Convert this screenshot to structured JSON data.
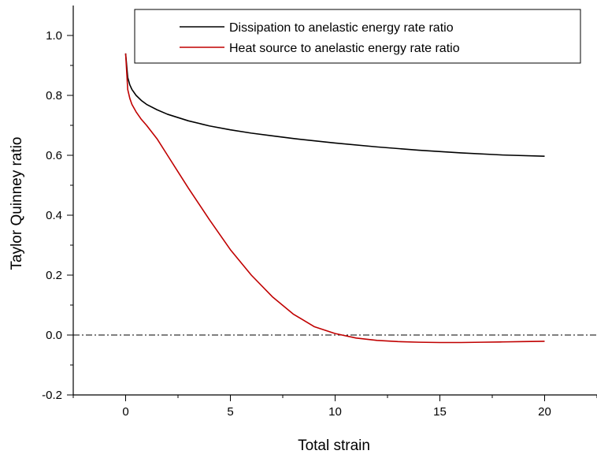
{
  "chart_data": {
    "type": "line",
    "xlabel": "Total strain",
    "ylabel": "Taylor Quinney ratio",
    "xlim": [
      -2.5,
      22.5
    ],
    "ylim": [
      -0.2,
      1.1
    ],
    "x_ticks": [
      0,
      5,
      10,
      15,
      20
    ],
    "x_tick_labels": [
      "0",
      "5",
      "10",
      "15",
      "20"
    ],
    "y_ticks": [
      -0.2,
      0.0,
      0.2,
      0.4,
      0.6,
      0.8,
      1.0
    ],
    "y_tick_labels": [
      "-0.2",
      "0.0",
      "0.2",
      "0.4",
      "0.6",
      "0.8",
      "1.0"
    ],
    "grid": false,
    "legend_position": "top-right",
    "reference_line": {
      "y": 0.0,
      "style": "dash-dot",
      "color": "#000000"
    },
    "series": [
      {
        "name": "Dissipation to anelastic energy rate ratio",
        "color": "#000000",
        "x": [
          0,
          0.1,
          0.2,
          0.3,
          0.5,
          0.75,
          1,
          1.5,
          2,
          3,
          4,
          5,
          6,
          7,
          8,
          10,
          12,
          14,
          16,
          18,
          20
        ],
        "y": [
          0.94,
          0.86,
          0.835,
          0.82,
          0.8,
          0.783,
          0.77,
          0.752,
          0.737,
          0.715,
          0.698,
          0.685,
          0.674,
          0.665,
          0.656,
          0.641,
          0.628,
          0.617,
          0.608,
          0.601,
          0.597
        ]
      },
      {
        "name": "Heat source to anelastic energy rate ratio",
        "color": "#c00000",
        "x": [
          0,
          0.1,
          0.2,
          0.3,
          0.5,
          0.75,
          1,
          1.5,
          2,
          2.5,
          3,
          4,
          5,
          6,
          7,
          8,
          9,
          10,
          11,
          12,
          13,
          14,
          15,
          16,
          17,
          18,
          19,
          20
        ],
        "y": [
          0.94,
          0.82,
          0.79,
          0.77,
          0.745,
          0.72,
          0.7,
          0.655,
          0.6,
          0.545,
          0.49,
          0.385,
          0.285,
          0.2,
          0.128,
          0.07,
          0.028,
          0.005,
          -0.01,
          -0.018,
          -0.022,
          -0.024,
          -0.025,
          -0.025,
          -0.024,
          -0.023,
          -0.022,
          -0.021
        ]
      }
    ]
  }
}
